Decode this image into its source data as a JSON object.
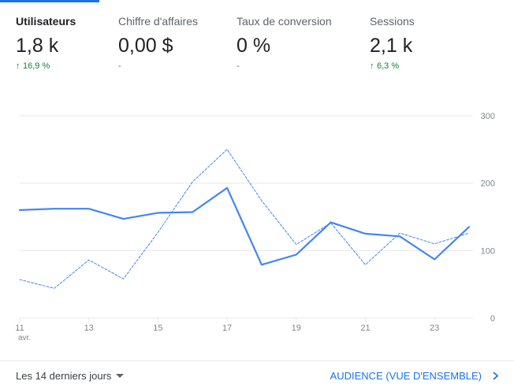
{
  "metrics": [
    {
      "title": "Utilisateurs",
      "value": "1,8 k",
      "change_arrow": "↑",
      "change": "16,9 %",
      "trend": "up",
      "active": true
    },
    {
      "title": "Chiffre d'affaires",
      "value": "0,00 $",
      "change_arrow": "",
      "change": "-",
      "trend": "none",
      "active": false
    },
    {
      "title": "Taux de conversion",
      "value": "0 %",
      "change_arrow": "",
      "change": "-",
      "trend": "none",
      "active": false
    },
    {
      "title": "Sessions",
      "value": "2,1 k",
      "change_arrow": "↑",
      "change": "6,3 %",
      "trend": "up",
      "active": false
    }
  ],
  "footer": {
    "date_range_label": "Les 14 derniers jours",
    "report_link_label": "AUDIENCE (VUE D'ENSEMBLE)"
  },
  "colors": {
    "accent": "#1a73e8",
    "series_current": "#4285f4",
    "series_previous": "#4285f4",
    "positive": "#188038",
    "grid": "#e8eaed"
  },
  "icons": {
    "trend_up": "arrow-up-icon",
    "dropdown": "caret-down-icon",
    "link": "chevron-right-icon"
  },
  "chart_data": {
    "type": "line",
    "x": [
      11,
      12,
      13,
      14,
      15,
      16,
      17,
      18,
      19,
      20,
      21,
      22,
      23,
      24
    ],
    "x_tick_labels": [
      "11",
      "13",
      "15",
      "17",
      "19",
      "21",
      "23"
    ],
    "x_tick_values": [
      11,
      13,
      15,
      17,
      19,
      21,
      23
    ],
    "x_sublabel": "avr.",
    "ylim": [
      0,
      300
    ],
    "y_ticks": [
      0,
      100,
      200,
      300
    ],
    "grid": true,
    "series": [
      {
        "style": "solid",
        "values": [
          160,
          162,
          162,
          147,
          156,
          157,
          193,
          79,
          94,
          142,
          125,
          121,
          87,
          135
        ]
      },
      {
        "style": "dashed",
        "values": [
          57,
          44,
          86,
          58,
          127,
          202,
          250,
          174,
          109,
          141,
          79,
          126,
          110,
          126
        ]
      }
    ]
  }
}
